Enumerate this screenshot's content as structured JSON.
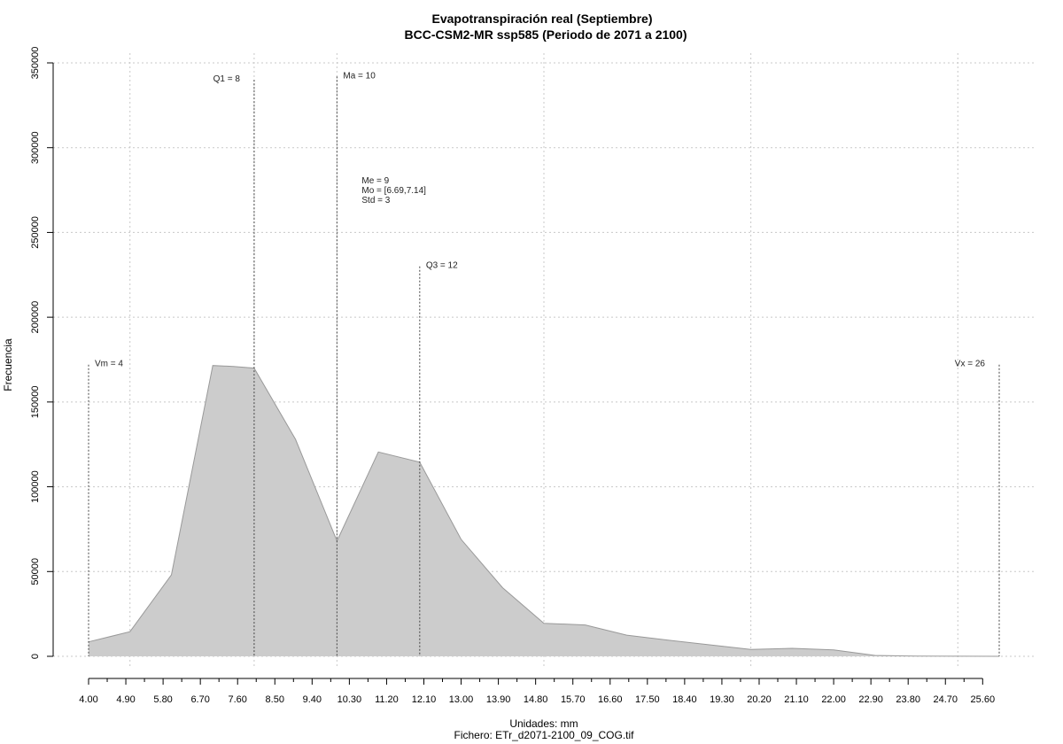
{
  "chart_data": {
    "type": "area",
    "title": "Evapotranspiración real (Septiembre)",
    "subtitle": "BCC-CSM2-MR ssp585 (Periodo de 2071 a 2100)",
    "xlabel": "Unidades: mm",
    "ylabel": "Frecuencia",
    "caption": "Fichero: ETr_d2071-2100_09_COG.tif",
    "xlim": [
      4.0,
      26.0
    ],
    "ylim": [
      0,
      350000
    ],
    "x_ticks": [
      4.0,
      4.9,
      5.8,
      6.7,
      7.6,
      8.5,
      9.4,
      10.3,
      11.2,
      12.1,
      13.0,
      13.9,
      14.8,
      15.7,
      16.6,
      17.5,
      18.4,
      19.3,
      20.2,
      21.1,
      22.0,
      22.9,
      23.8,
      24.7,
      25.6
    ],
    "x_tick_labels": [
      "4.00",
      "4.90",
      "5.80",
      "6.70",
      "7.60",
      "8.50",
      "9.40",
      "10.30",
      "11.20",
      "12.10",
      "13.00",
      "13.90",
      "14.80",
      "15.70",
      "16.60",
      "17.50",
      "18.40",
      "19.30",
      "20.20",
      "21.10",
      "22.00",
      "22.90",
      "23.80",
      "24.70",
      "25.60"
    ],
    "y_ticks": [
      0,
      50000,
      100000,
      150000,
      200000,
      250000,
      300000,
      350000
    ],
    "y_tick_labels": [
      "0",
      "50000",
      "100000",
      "150000",
      "200000",
      "250000",
      "300000",
      "350000"
    ],
    "x_grid": [
      5.0,
      8.0,
      10.0,
      15.0,
      20.0,
      25.0
    ],
    "y_grid": [
      0,
      50000,
      100000,
      150000,
      200000,
      250000,
      300000,
      350000
    ],
    "grid": true,
    "fill_color": "#cccccc",
    "line_color": "#999999",
    "series": [
      {
        "x": [
          4.0,
          5.0,
          6.0,
          7.0,
          7.5,
          8.0,
          9.0,
          10.0,
          11.0,
          12.0,
          13.0,
          14.0,
          15.0,
          16.0,
          17.0,
          18.0,
          19.0,
          20.0,
          21.0,
          22.0,
          23.0,
          24.0,
          25.0,
          26.0
        ],
        "y": [
          8500,
          14500,
          48000,
          171500,
          171000,
          170000,
          128000,
          68000,
          120500,
          114500,
          69000,
          40500,
          19500,
          18500,
          12500,
          9500,
          6800,
          4000,
          4700,
          3800,
          500,
          100,
          50,
          0
        ]
      }
    ],
    "markers": [
      {
        "label": "Vm = 4",
        "x": 4.0,
        "y_top": 172000,
        "label_side": "right"
      },
      {
        "label": "Q1 = 8",
        "x": 8.0,
        "y_top": 340000,
        "label_side": "left"
      },
      {
        "label": "Ma = 10",
        "x": 10.0,
        "y_top": 342000,
        "label_side": "right"
      },
      {
        "label": "Q3 = 12",
        "x": 12.0,
        "y_top": 230000,
        "label_side": "right"
      },
      {
        "label": "Vx = 26",
        "x": 26.0,
        "y_top": 172000,
        "label_side": "left"
      }
    ],
    "stats_annotation": {
      "lines": [
        "Me = 9",
        "Mo = [6.69,7.14]",
        "Std = 3"
      ],
      "x": 10.6,
      "y": 281000
    }
  }
}
